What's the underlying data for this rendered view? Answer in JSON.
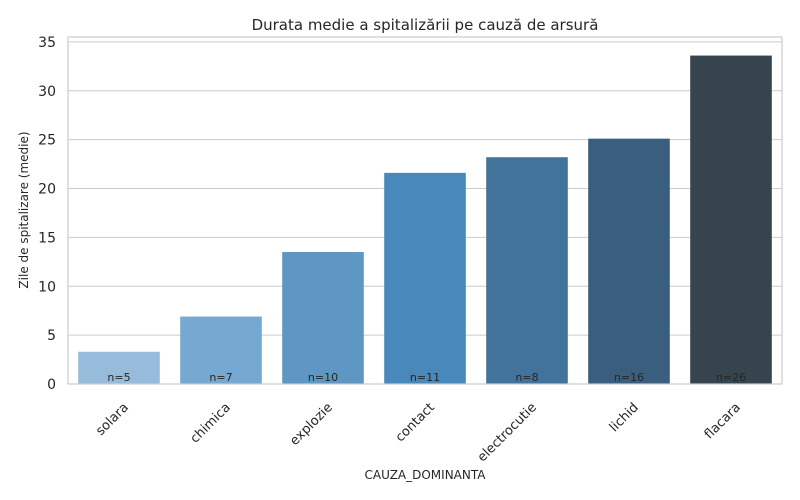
{
  "chart_data": {
    "type": "bar",
    "title": "Durata medie a spitalizării pe cauză de arsură",
    "xlabel": "CAUZA_DOMINANTA",
    "ylabel": "Zile de spitalizare (medie)",
    "categories": [
      "solara",
      "chimica",
      "explozie",
      "contact",
      "electrocutie",
      "lichid",
      "flacara"
    ],
    "values": [
      3.3,
      6.9,
      13.5,
      21.6,
      23.2,
      25.1,
      33.6
    ],
    "counts": [
      "n=5",
      "n=7",
      "n=10",
      "n=11",
      "n=8",
      "n=16",
      "n=26"
    ],
    "colors": [
      "#97bcdb",
      "#76a9d1",
      "#5e97c2",
      "#4888bb",
      "#41739b",
      "#3a5f7e",
      "#36444e"
    ],
    "ylim": [
      0,
      35.5
    ],
    "yticks": [
      0,
      5,
      10,
      15,
      20,
      25,
      30,
      35
    ],
    "grid": true,
    "legend": "none"
  }
}
